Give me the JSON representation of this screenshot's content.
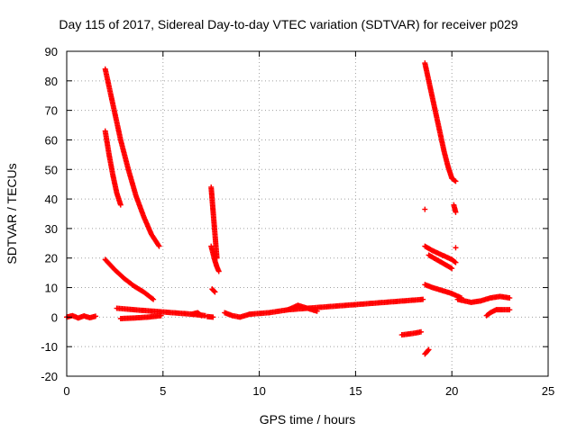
{
  "chart_data": {
    "type": "scatter",
    "title": "Day 115 of 2017, Sidereal Day-to-day VTEC variation (SDTVAR) for receiver p029",
    "xlabel": "GPS time / hours",
    "ylabel": "SDTVAR / TECUs",
    "xlim": [
      0,
      25
    ],
    "ylim": [
      -20,
      90
    ],
    "xticks": [
      0,
      5,
      10,
      15,
      20,
      25
    ],
    "yticks": [
      -20,
      -10,
      0,
      10,
      20,
      30,
      40,
      50,
      60,
      70,
      80,
      90
    ],
    "grid": true,
    "legend": "none",
    "marker": "+",
    "color": "#ff0000",
    "arcs": [
      {
        "x": [
          0.0,
          0.3,
          0.6,
          0.9,
          1.2,
          1.5
        ],
        "y": [
          0,
          0.5,
          -0.3,
          0.4,
          -0.2,
          0.3
        ]
      },
      {
        "x": [
          2.0,
          2.4,
          2.8,
          3.2,
          3.6,
          4.0,
          4.4,
          4.8
        ],
        "y": [
          84,
          72,
          60,
          50,
          41,
          34,
          28,
          24
        ]
      },
      {
        "x": [
          2.0,
          2.2,
          2.4,
          2.6,
          2.8
        ],
        "y": [
          63,
          55,
          48,
          42,
          38
        ]
      },
      {
        "x": [
          2.0,
          2.5,
          3.0,
          3.5,
          4.0,
          4.5
        ],
        "y": [
          19.5,
          16,
          13,
          10.5,
          8.5,
          6
        ]
      },
      {
        "x": [
          2.6,
          3.5,
          4.5,
          5.5,
          6.5,
          7.2
        ],
        "y": [
          3,
          2.5,
          2,
          1.5,
          1,
          0.5
        ]
      },
      {
        "x": [
          2.8,
          3.5,
          4.2,
          4.9
        ],
        "y": [
          -0.5,
          -0.3,
          0,
          0.5
        ]
      },
      {
        "x": [
          6.5,
          6.8,
          7.0
        ],
        "y": [
          1,
          1.5,
          0.5
        ]
      },
      {
        "x": [
          7.3,
          7.6
        ],
        "y": [
          0.2,
          0
        ]
      },
      {
        "x": [
          7.5,
          7.6,
          7.7,
          7.8
        ],
        "y": [
          44,
          36,
          28,
          20
        ]
      },
      {
        "x": [
          7.5,
          7.7,
          7.8,
          7.9
        ],
        "y": [
          24,
          19,
          17,
          15.5
        ]
      },
      {
        "x": [
          7.55,
          7.7
        ],
        "y": [
          9.5,
          8.5
        ]
      },
      {
        "x": [
          8.2,
          8.6,
          9.0,
          9.5
        ],
        "y": [
          1.5,
          0.5,
          0,
          1
        ]
      },
      {
        "x": [
          9.5,
          10.5,
          11.5,
          12.5,
          13.5,
          14.5,
          15.5,
          16.5,
          17.5,
          18.5
        ],
        "y": [
          1,
          1.5,
          2.5,
          3,
          3.5,
          4,
          4.5,
          5,
          5.5,
          6
        ]
      },
      {
        "x": [
          11.5,
          12.0,
          12.5,
          13.0
        ],
        "y": [
          2.5,
          4,
          3,
          2
        ]
      },
      {
        "x": [
          17.4,
          18.0,
          18.4
        ],
        "y": [
          -6,
          -5.5,
          -5
        ]
      },
      {
        "x": [
          18.6,
          18.8
        ],
        "y": [
          -12.5,
          -11
        ]
      },
      {
        "x": [
          18.6
        ],
        "y": [
          36.5
        ]
      },
      {
        "x": [
          18.6,
          18.8,
          19.0,
          19.2,
          19.4,
          19.6,
          19.8,
          20.0,
          20.2
        ],
        "y": [
          86,
          80,
          74,
          68,
          62,
          56,
          51,
          47,
          46
        ]
      },
      {
        "x": [
          20.1,
          20.2
        ],
        "y": [
          38,
          35.5
        ]
      },
      {
        "x": [
          20.2
        ],
        "y": [
          23.5
        ]
      },
      {
        "x": [
          18.6,
          19.0,
          19.5,
          20.0,
          20.2
        ],
        "y": [
          24,
          22.5,
          21,
          19.5,
          18.5
        ]
      },
      {
        "x": [
          18.8,
          19.2,
          19.6,
          20.0
        ],
        "y": [
          21,
          19.5,
          18,
          16.5
        ]
      },
      {
        "x": [
          18.6,
          19.0,
          19.5,
          20.0,
          20.5
        ],
        "y": [
          11,
          10,
          9,
          8,
          6.5
        ]
      },
      {
        "x": [
          20.3,
          21.0,
          21.5,
          22.0,
          22.5,
          23.0
        ],
        "y": [
          6,
          5,
          5.5,
          6.5,
          7,
          6.5
        ]
      },
      {
        "x": [
          21.8,
          22.0,
          22.3,
          22.6,
          23.0
        ],
        "y": [
          0.5,
          1.5,
          2.5,
          2.5,
          2.5
        ]
      }
    ]
  }
}
